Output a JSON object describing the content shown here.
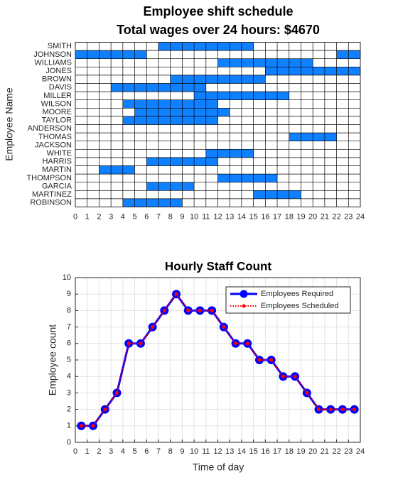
{
  "chart_data": [
    {
      "type": "schedule",
      "title": "Employee shift schedule",
      "subtitle": "Total wages over 24 hours: $4670",
      "y_label": "Employee Name",
      "categories": [
        "SMITH",
        "JOHNSON",
        "WILLIAMS",
        "JONES",
        "BROWN",
        "DAVIS",
        "MILLER",
        "WILSON",
        "MOORE",
        "TAYLOR",
        "ANDERSON",
        "THOMAS",
        "JACKSON",
        "WHITE",
        "HARRIS",
        "MARTIN",
        "THOMPSON",
        "GARCIA",
        "MARTINEZ",
        "ROBINSON"
      ],
      "shifts": [
        [
          [
            7,
            15
          ]
        ],
        [
          [
            0,
            6
          ],
          [
            22,
            24
          ]
        ],
        [
          [
            12,
            20
          ]
        ],
        [
          [
            16,
            24
          ]
        ],
        [
          [
            8,
            16
          ]
        ],
        [
          [
            3,
            11
          ]
        ],
        [
          [
            10,
            18
          ]
        ],
        [
          [
            4,
            12
          ]
        ],
        [
          [
            5,
            13
          ]
        ],
        [
          [
            4,
            12
          ]
        ],
        [],
        [
          [
            18,
            22
          ]
        ],
        [],
        [
          [
            11,
            15
          ]
        ],
        [
          [
            6,
            12
          ]
        ],
        [
          [
            2,
            5
          ]
        ],
        [
          [
            12,
            17
          ]
        ],
        [
          [
            6,
            10
          ]
        ],
        [
          [
            15,
            19
          ]
        ],
        [
          [
            4,
            9
          ]
        ]
      ],
      "color": "#0f80ff",
      "xlim": [
        0,
        24
      ],
      "xticks": [
        0,
        1,
        2,
        3,
        4,
        5,
        6,
        7,
        8,
        9,
        10,
        11,
        12,
        13,
        14,
        15,
        16,
        17,
        18,
        19,
        20,
        21,
        22,
        23,
        24
      ]
    },
    {
      "type": "line",
      "title": "Hourly Staff Count",
      "x_label": "Time of day",
      "y_label": "Employee count",
      "x": [
        0.5,
        1.5,
        2.5,
        3.5,
        4.5,
        5.5,
        6.5,
        7.5,
        8.5,
        9.5,
        10.5,
        11.5,
        12.5,
        13.5,
        14.5,
        15.5,
        16.5,
        17.5,
        18.5,
        19.5,
        20.5,
        21.5,
        22.5,
        23.5
      ],
      "series": [
        {
          "name": "Employees Required",
          "color": "#0000ff",
          "values": [
            1,
            1,
            2,
            3,
            6,
            6,
            7,
            8,
            9,
            8,
            8,
            8,
            7,
            6,
            6,
            5,
            5,
            4,
            4,
            3,
            2,
            2,
            2,
            2
          ]
        },
        {
          "name": "Employees Scheduled",
          "color": "#ff0000",
          "values": [
            1,
            1,
            2,
            3,
            6,
            6,
            7,
            8,
            9,
            8,
            8,
            8,
            7,
            6,
            6,
            5,
            5,
            4,
            4,
            3,
            2,
            2,
            2,
            2
          ]
        }
      ],
      "xlim": [
        0,
        24
      ],
      "xticks": [
        0,
        1,
        2,
        3,
        4,
        5,
        6,
        7,
        8,
        9,
        10,
        11,
        12,
        13,
        14,
        15,
        16,
        17,
        18,
        19,
        20,
        21,
        22,
        23,
        24
      ],
      "ylim": [
        0,
        10
      ],
      "yticks": [
        0,
        1,
        2,
        3,
        4,
        5,
        6,
        7,
        8,
        9,
        10
      ],
      "grid": true,
      "legend": "northeast"
    }
  ]
}
